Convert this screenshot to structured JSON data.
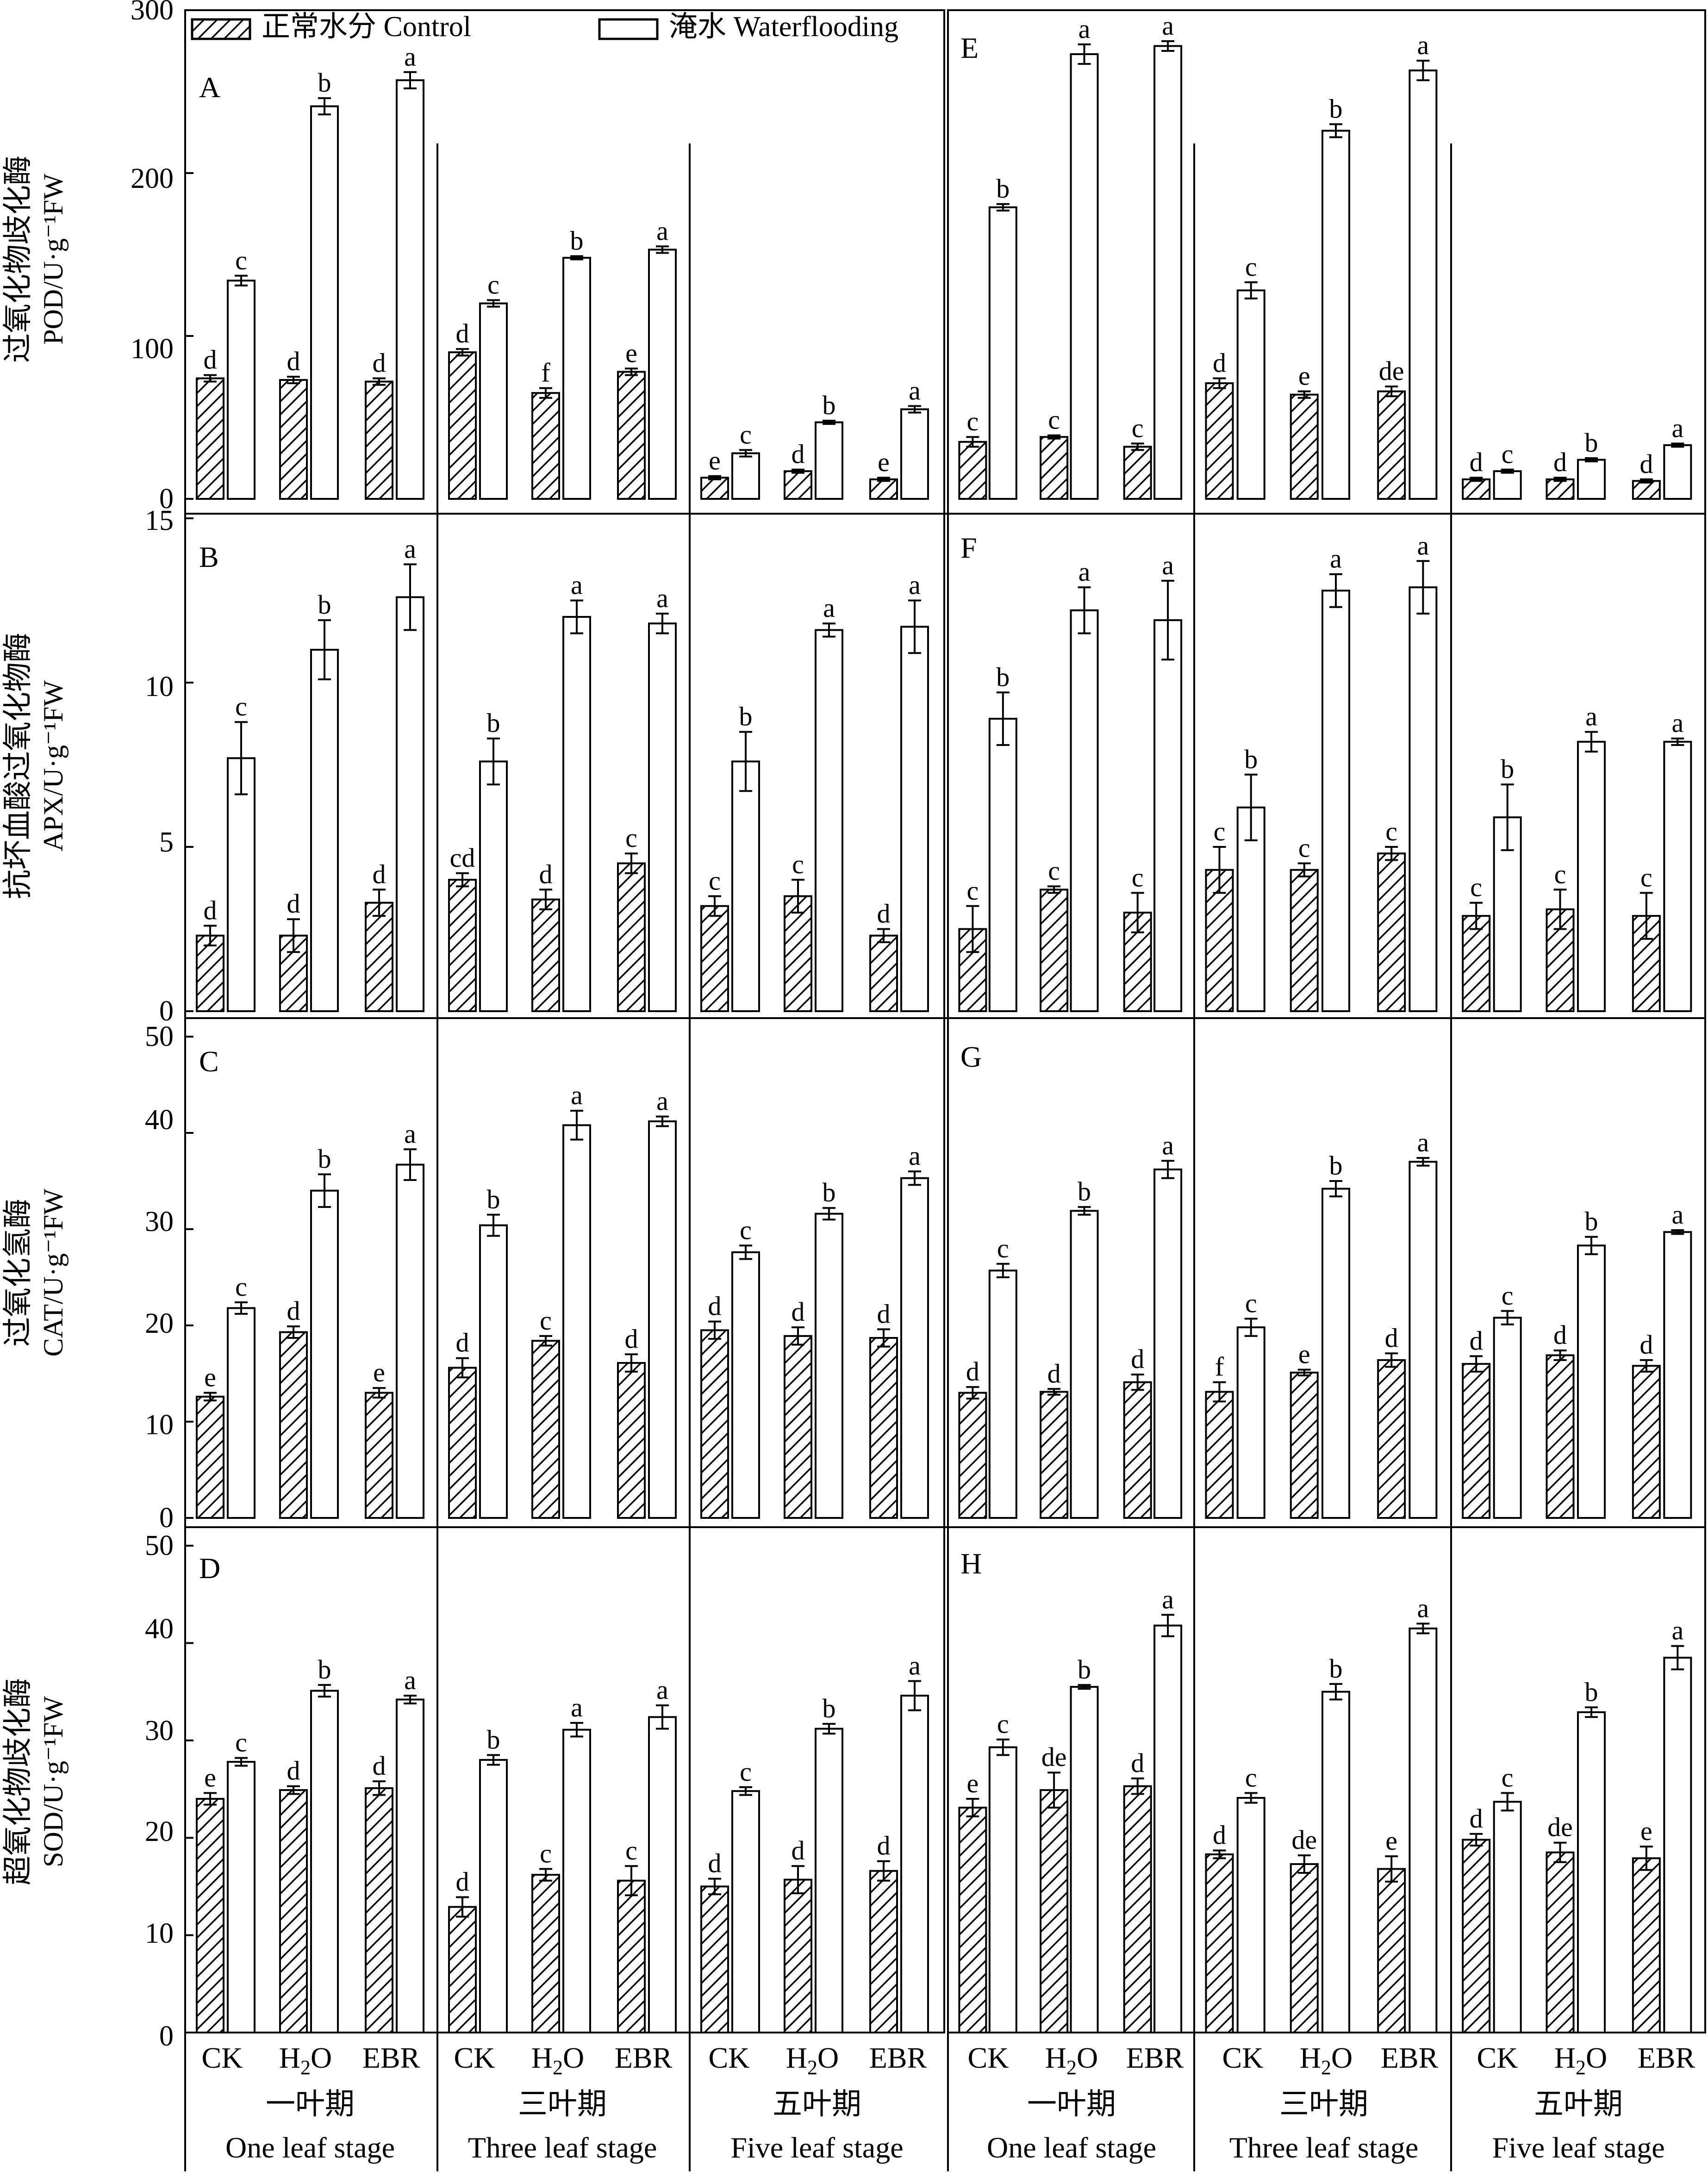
{
  "legend": [
    {
      "label": "正常水分 Control",
      "pattern": "hatch"
    },
    {
      "label": "淹水 Waterflooding",
      "pattern": "open"
    }
  ],
  "treatments": [
    "CK",
    "H2O",
    "EBR"
  ],
  "stages": [
    {
      "cn": "一叶期",
      "en": "One leaf stage"
    },
    {
      "cn": "三叶期",
      "en": "Three  leaf stage"
    },
    {
      "cn": "五叶期",
      "en": "Five leaf stage"
    }
  ],
  "rows": [
    {
      "ylabel_cn": "过氧化物歧化酶",
      "ylabel_en": "POD/U·g⁻¹FW",
      "ymax": 300,
      "yticks": [
        0,
        100,
        200,
        300
      ],
      "panels": [
        "A",
        "E"
      ]
    },
    {
      "ylabel_cn": "抗坏血酸过氧化物酶",
      "ylabel_en": "APX/U·g⁻¹FW",
      "ymax": 15,
      "yticks": [
        0,
        5,
        10,
        15
      ],
      "panels": [
        "B",
        "F"
      ]
    },
    {
      "ylabel_cn": "过氧化氢酶",
      "ylabel_en": "CAT/U·g⁻¹FW",
      "ymax": 50,
      "yticks": [
        0,
        10,
        20,
        30,
        40,
        50
      ],
      "panels": [
        "C",
        "G"
      ]
    },
    {
      "ylabel_cn": "超氧化物歧化酶",
      "ylabel_en": "SOD/U·g⁻¹FW",
      "ymax": 50,
      "yticks": [
        0,
        10,
        20,
        30,
        40,
        50
      ],
      "panels": [
        "D",
        "H"
      ]
    }
  ],
  "chart_data": {
    "type": "bar",
    "series_order": [
      "Control",
      "Waterflooding"
    ],
    "panels": [
      {
        "label": "A",
        "row": 0,
        "col": 0,
        "stages": [
          [
            [
              74,
              2,
              "d"
            ],
            [
              134,
              3,
              "c"
            ],
            [
              73,
              2,
              "d"
            ],
            [
              241,
              5,
              "b"
            ],
            [
              72,
              2,
              "d"
            ],
            [
              257,
              5,
              "a"
            ]
          ],
          [
            [
              90,
              2,
              "d"
            ],
            [
              120,
              2,
              "c"
            ],
            [
              65,
              3,
              "f"
            ],
            [
              148,
              1,
              "b"
            ],
            [
              78,
              2,
              "e"
            ],
            [
              153,
              2,
              "a"
            ]
          ],
          [
            [
              13,
              1,
              "e"
            ],
            [
              28,
              2,
              "c"
            ],
            [
              17,
              1,
              "d"
            ],
            [
              47,
              1,
              "b"
            ],
            [
              12,
              1,
              "e"
            ],
            [
              55,
              2,
              "a"
            ]
          ]
        ]
      },
      {
        "label": "B",
        "row": 1,
        "col": 0,
        "stages": [
          [
            [
              2.3,
              0.3,
              "d"
            ],
            [
              7.7,
              1.1,
              "c"
            ],
            [
              2.3,
              0.5,
              "d"
            ],
            [
              11.0,
              0.9,
              "b"
            ],
            [
              3.3,
              0.4,
              "d"
            ],
            [
              12.6,
              1.0,
              "a"
            ]
          ],
          [
            [
              4.0,
              0.2,
              "cd"
            ],
            [
              7.6,
              0.7,
              "b"
            ],
            [
              3.4,
              0.3,
              "d"
            ],
            [
              12.0,
              0.5,
              "a"
            ],
            [
              4.5,
              0.3,
              "c"
            ],
            [
              11.8,
              0.3,
              "a"
            ]
          ],
          [
            [
              3.2,
              0.3,
              "c"
            ],
            [
              7.6,
              0.9,
              "b"
            ],
            [
              3.5,
              0.5,
              "c"
            ],
            [
              11.6,
              0.2,
              "a"
            ],
            [
              2.3,
              0.2,
              "d"
            ],
            [
              11.7,
              0.8,
              "a"
            ]
          ]
        ]
      },
      {
        "label": "C",
        "row": 2,
        "col": 0,
        "stages": [
          [
            [
              12.6,
              0.4,
              "e"
            ],
            [
              21.8,
              0.6,
              "c"
            ],
            [
              19.3,
              0.6,
              "d"
            ],
            [
              34.0,
              1.7,
              "b"
            ],
            [
              13.0,
              0.5,
              "e"
            ],
            [
              36.7,
              1.6,
              "a"
            ]
          ],
          [
            [
              15.6,
              1.0,
              "d"
            ],
            [
              30.4,
              1.1,
              "b"
            ],
            [
              18.4,
              0.5,
              "c"
            ],
            [
              40.8,
              1.5,
              "a"
            ],
            [
              16.1,
              0.9,
              "d"
            ],
            [
              41.2,
              0.5,
              "a"
            ]
          ],
          [
            [
              19.5,
              0.9,
              "d"
            ],
            [
              27.6,
              0.7,
              "c"
            ],
            [
              18.9,
              0.9,
              "d"
            ],
            [
              31.6,
              0.6,
              "b"
            ],
            [
              18.7,
              0.9,
              "d"
            ],
            [
              35.3,
              0.7,
              "a"
            ]
          ]
        ]
      },
      {
        "label": "D",
        "row": 3,
        "col": 0,
        "stages": [
          [
            [
              24.0,
              0.6,
              "e"
            ],
            [
              27.8,
              0.4,
              "c"
            ],
            [
              24.9,
              0.4,
              "d"
            ],
            [
              35.1,
              0.6,
              "b"
            ],
            [
              25.1,
              0.7,
              "d"
            ],
            [
              34.2,
              0.4,
              "a"
            ]
          ],
          [
            [
              12.9,
              1.0,
              "d"
            ],
            [
              28.0,
              0.5,
              "b"
            ],
            [
              16.2,
              0.6,
              "c"
            ],
            [
              31.1,
              0.7,
              "a"
            ],
            [
              15.6,
              1.5,
              "c"
            ],
            [
              32.4,
              1.2,
              "a"
            ]
          ],
          [
            [
              15.0,
              0.8,
              "d"
            ],
            [
              24.8,
              0.4,
              "c"
            ],
            [
              15.7,
              1.4,
              "d"
            ],
            [
              31.2,
              0.5,
              "b"
            ],
            [
              16.6,
              1.0,
              "d"
            ],
            [
              34.6,
              1.5,
              "a"
            ]
          ]
        ]
      },
      {
        "label": "E",
        "row": 0,
        "col": 1,
        "stages": [
          [
            [
              35,
              3,
              "c"
            ],
            [
              179,
              2,
              "b"
            ],
            [
              38,
              1,
              "c"
            ],
            [
              273,
              6,
              "a"
            ],
            [
              32,
              2,
              "c"
            ],
            [
              278,
              3,
              "a"
            ]
          ],
          [
            [
              71,
              3,
              "d"
            ],
            [
              128,
              5,
              "c"
            ],
            [
              64,
              2,
              "e"
            ],
            [
              226,
              4,
              "b"
            ],
            [
              66,
              3,
              "de"
            ],
            [
              263,
              6,
              "a"
            ]
          ],
          [
            [
              12,
              1,
              "d"
            ],
            [
              17,
              1,
              "c"
            ],
            [
              12,
              1,
              "d"
            ],
            [
              24,
              1,
              "b"
            ],
            [
              11,
              1,
              "d"
            ],
            [
              33,
              1,
              "a"
            ]
          ]
        ]
      },
      {
        "label": "F",
        "row": 1,
        "col": 1,
        "stages": [
          [
            [
              2.5,
              0.7,
              "c"
            ],
            [
              8.9,
              0.8,
              "b"
            ],
            [
              3.7,
              0.1,
              "c"
            ],
            [
              12.2,
              0.7,
              "a"
            ],
            [
              3.0,
              0.6,
              "c"
            ],
            [
              11.9,
              1.2,
              "a"
            ]
          ],
          [
            [
              4.3,
              0.7,
              "c"
            ],
            [
              6.2,
              1.0,
              "b"
            ],
            [
              4.3,
              0.2,
              "c"
            ],
            [
              12.8,
              0.5,
              "a"
            ],
            [
              4.8,
              0.2,
              "c"
            ],
            [
              12.9,
              0.8,
              "a"
            ]
          ],
          [
            [
              2.9,
              0.4,
              "c"
            ],
            [
              5.9,
              1.0,
              "b"
            ],
            [
              3.1,
              0.6,
              "c"
            ],
            [
              8.2,
              0.3,
              "a"
            ],
            [
              2.9,
              0.7,
              "c"
            ],
            [
              8.2,
              0.1,
              "a"
            ]
          ]
        ]
      },
      {
        "label": "G",
        "row": 2,
        "col": 1,
        "stages": [
          [
            [
              13.0,
              0.6,
              "d"
            ],
            [
              25.7,
              0.7,
              "c"
            ],
            [
              13.1,
              0.3,
              "d"
            ],
            [
              31.9,
              0.4,
              "b"
            ],
            [
              14.1,
              0.8,
              "d"
            ],
            [
              36.2,
              0.9,
              "a"
            ]
          ],
          [
            [
              13.1,
              1.0,
              "f"
            ],
            [
              19.8,
              0.9,
              "c"
            ],
            [
              15.1,
              0.3,
              "e"
            ],
            [
              34.2,
              0.8,
              "b"
            ],
            [
              16.4,
              0.7,
              "d"
            ],
            [
              37.0,
              0.4,
              "a"
            ]
          ],
          [
            [
              16.0,
              0.8,
              "d"
            ],
            [
              20.8,
              0.7,
              "c"
            ],
            [
              16.9,
              0.5,
              "d"
            ],
            [
              28.3,
              0.9,
              "b"
            ],
            [
              15.8,
              0.6,
              "d"
            ],
            [
              29.7,
              0.2,
              "a"
            ]
          ]
        ]
      },
      {
        "label": "H",
        "row": 3,
        "col": 1,
        "stages": [
          [
            [
              23.1,
              0.9,
              "e"
            ],
            [
              29.3,
              0.8,
              "c"
            ],
            [
              24.9,
              1.8,
              "de"
            ],
            [
              35.5,
              0.2,
              "b"
            ],
            [
              25.3,
              0.8,
              "d"
            ],
            [
              41.8,
              1.1,
              "a"
            ]
          ],
          [
            [
              18.3,
              0.4,
              "d"
            ],
            [
              24.1,
              0.5,
              "c"
            ],
            [
              17.3,
              0.9,
              "de"
            ],
            [
              35.0,
              0.8,
              "b"
            ],
            [
              16.8,
              1.3,
              "e"
            ],
            [
              41.5,
              0.5,
              "a"
            ]
          ],
          [
            [
              19.8,
              0.6,
              "d"
            ],
            [
              23.7,
              0.9,
              "c"
            ],
            [
              18.5,
              1.0,
              "de"
            ],
            [
              32.9,
              0.5,
              "b"
            ],
            [
              17.9,
              1.2,
              "e"
            ],
            [
              38.5,
              1.2,
              "a"
            ]
          ]
        ]
      }
    ]
  }
}
